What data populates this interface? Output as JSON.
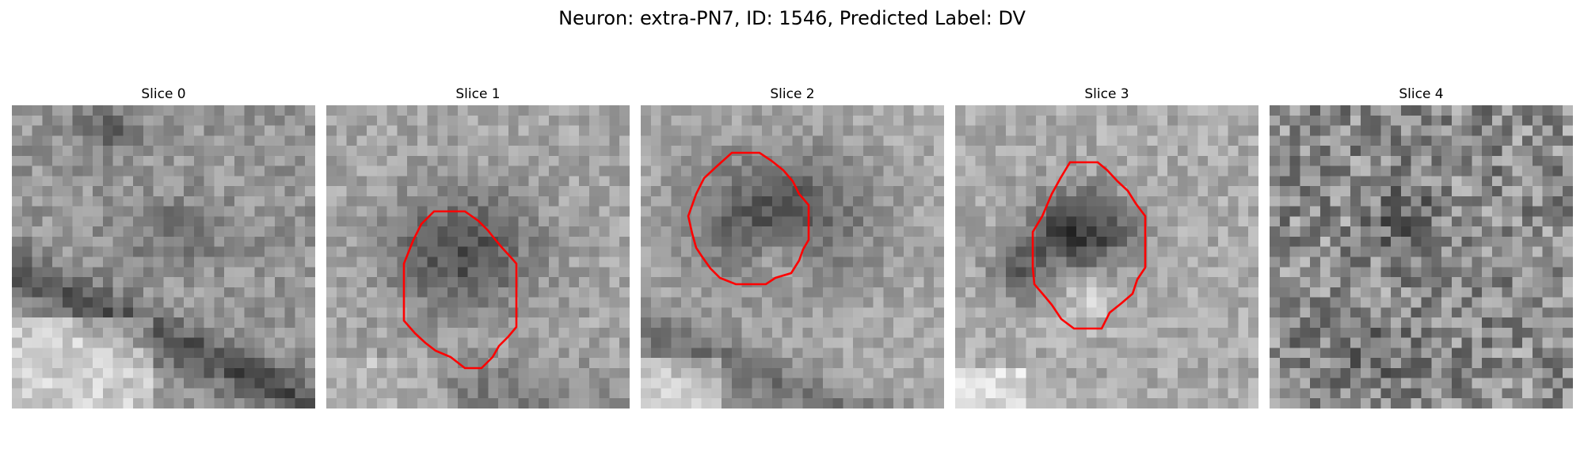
{
  "figure": {
    "title": "Neuron: extra-PN7, ID: 1546, Predicted Label: DV"
  },
  "contour_color": "#ff0000",
  "colormap": "gray",
  "panels": [
    {
      "title": "Slice 0",
      "contour": false
    },
    {
      "title": "Slice 1",
      "contour": true
    },
    {
      "title": "Slice 2",
      "contour": true
    },
    {
      "title": "Slice 3",
      "contour": true
    },
    {
      "title": "Slice 4",
      "contour": false
    }
  ]
}
